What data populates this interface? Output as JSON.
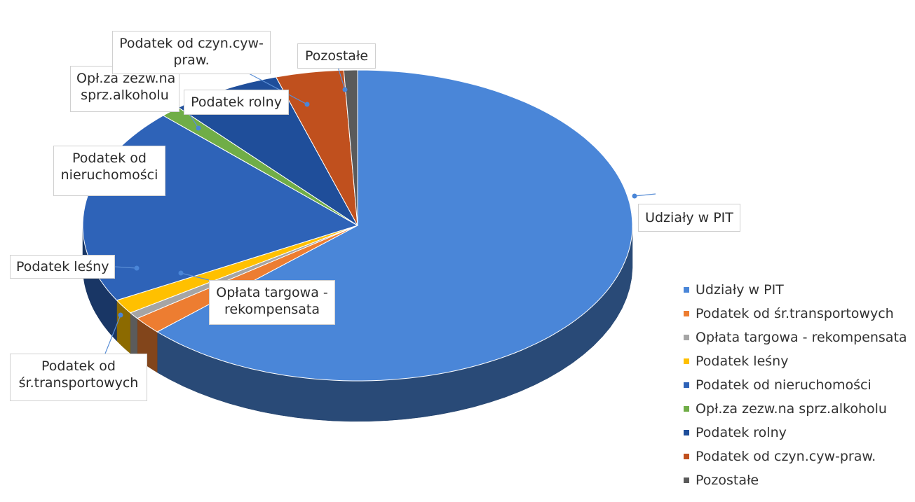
{
  "chart_data": {
    "type": "pie",
    "title": "",
    "three_d": true,
    "legend_position": "right",
    "slices": [
      {
        "label": "Udziały w PIT",
        "value": 63.0,
        "color": "#4a86d8"
      },
      {
        "label": "Podatek od śr.transportowych",
        "value": 1.8,
        "color": "#ed7d31"
      },
      {
        "label": "Opłata targowa - rekompensata",
        "value": 0.7,
        "color": "#a5a5a5"
      },
      {
        "label": "Podatek leśny",
        "value": 1.5,
        "color": "#ffc000"
      },
      {
        "label": "Podatek od nieruchomości",
        "value": 20.5,
        "color": "#2e63b8"
      },
      {
        "label": "Opł.za zezw.na sprz.alkoholu",
        "value": 1.2,
        "color": "#70ad47"
      },
      {
        "label": "Podatek rolny",
        "value": 6.5,
        "color": "#1f4e9a"
      },
      {
        "label": "Podatek od czyn.cyw-praw.",
        "value": 4.0,
        "color": "#c0501e"
      },
      {
        "label": "Pozostałe",
        "value": 0.8,
        "color": "#5a5a5a"
      }
    ]
  },
  "callouts": {
    "pit": "Udziały w PIT",
    "transport_line1": "Podatek od",
    "transport_line2": "śr.transportowych",
    "targowa_line1": "Opłata targowa -",
    "targowa_line2": "rekompensata",
    "lesny": "Podatek leśny",
    "nieruch_line1": "Podatek od",
    "nieruch_line2": "nieruchomości",
    "alkohol_line1": "Opł.za zezw.na",
    "alkohol_line2": "sprz.alkoholu",
    "rolny": "Podatek rolny",
    "czyn_line1": "Podatek od czyn.cyw-",
    "czyn_line2": "praw.",
    "pozostale": "Pozostałe"
  },
  "legend": [
    {
      "label": "Udziały w PIT",
      "color": "#4a86d8"
    },
    {
      "label": "Podatek od śr.transportowych",
      "color": "#ed7d31"
    },
    {
      "label": "Opłata targowa - rekompensata",
      "color": "#a5a5a5"
    },
    {
      "label": "Podatek leśny",
      "color": "#ffc000"
    },
    {
      "label": "Podatek od nieruchomości",
      "color": "#2e63b8"
    },
    {
      "label": "Opł.za zezw.na sprz.alkoholu",
      "color": "#70ad47"
    },
    {
      "label": "Podatek rolny",
      "color": "#1f4e9a"
    },
    {
      "label": "Podatek od czyn.cyw-praw.",
      "color": "#c0501e"
    },
    {
      "label": "Pozostałe",
      "color": "#5a5a5a"
    }
  ]
}
